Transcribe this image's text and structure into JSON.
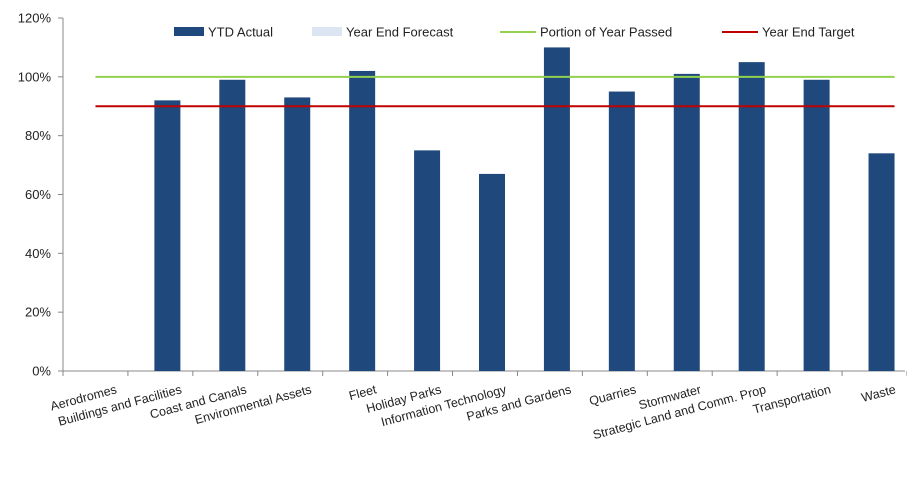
{
  "chart_data": {
    "type": "bar",
    "categories": [
      "Aerodromes",
      "Buildings and Facilities",
      "Coast and Canals",
      "Environmental Assets",
      "Fleet",
      "Holiday Parks",
      "Information Technology",
      "Parks and Gardens",
      "Quarries",
      "Stormwater",
      "Strategic Land and Comm. Prop",
      "Transportation",
      "Waste"
    ],
    "series": [
      {
        "name": "YTD Actual",
        "type": "bar",
        "color": "#1f497d",
        "values": [
          0,
          92,
          99,
          93,
          102,
          75,
          67,
          110,
          95,
          101,
          105,
          99,
          74
        ]
      },
      {
        "name": "Year End Forecast",
        "type": "bar",
        "color": "#dce6f2",
        "values": [
          0,
          0,
          0,
          0,
          0,
          0,
          0,
          0,
          0,
          0,
          0,
          0,
          0
        ]
      },
      {
        "name": "Portion of Year Passed",
        "type": "line",
        "color": "#92d050",
        "value": 100
      },
      {
        "name": "Year End Target",
        "type": "line",
        "color": "#c00000",
        "value": 90
      }
    ],
    "yticks": [
      "0%",
      "20%",
      "40%",
      "60%",
      "80%",
      "100%",
      "120%"
    ],
    "ylim": [
      0,
      120
    ],
    "title": "",
    "xlabel": "",
    "ylabel": "",
    "grid": false,
    "legend_position": "top"
  }
}
